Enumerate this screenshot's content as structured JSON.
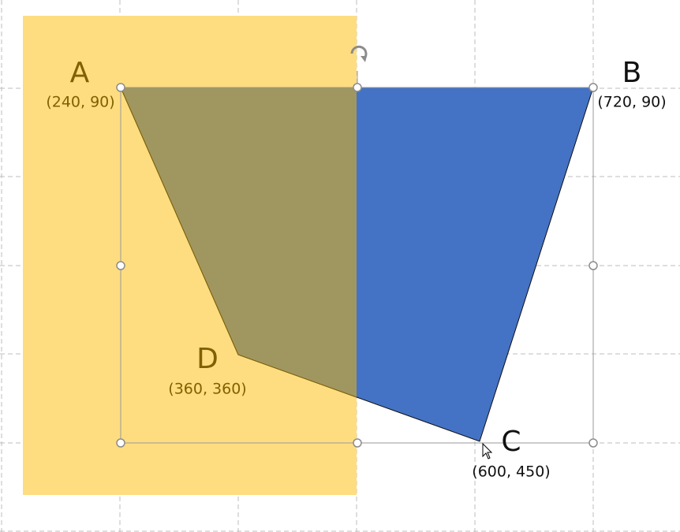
{
  "points": [
    {
      "label": "A",
      "coords": "(240, 90)"
    },
    {
      "label": "B",
      "coords": "(720, 90)"
    },
    {
      "label": "C",
      "coords": "(600, 450)"
    },
    {
      "label": "D",
      "coords": "(360, 360)"
    }
  ]
}
